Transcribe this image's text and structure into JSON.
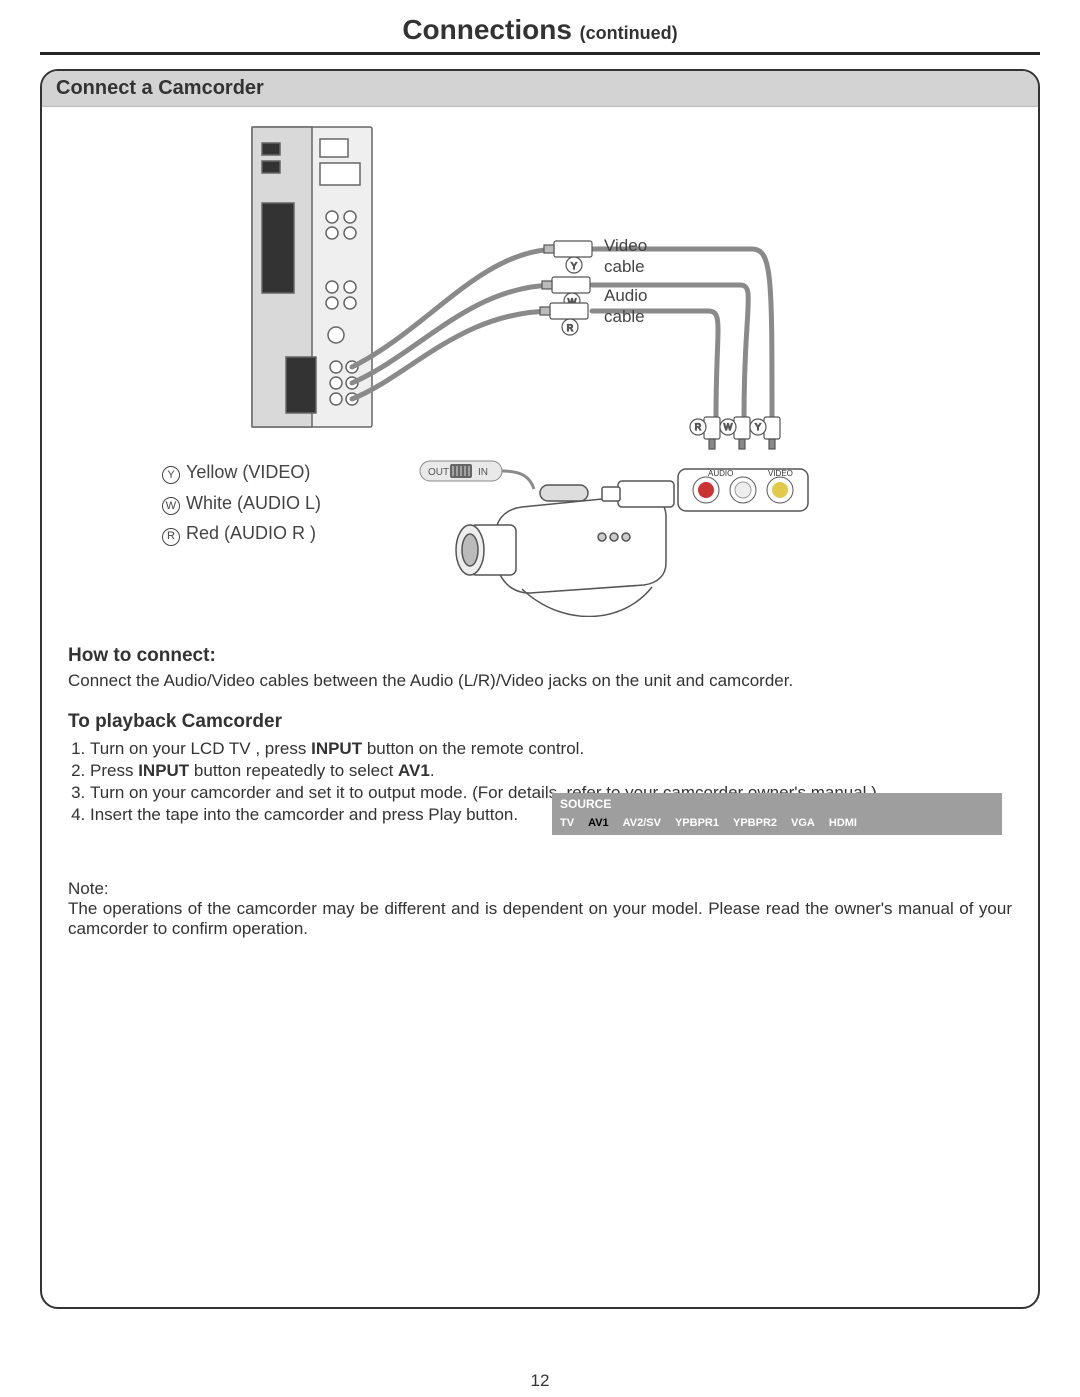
{
  "title": "Connections",
  "title_sub": "(continued)",
  "section_heading": "Connect a Camcorder",
  "diagram": {
    "video_cable_label": "Video\ncable",
    "audio_cable_label": "Audio\ncable",
    "switch_out": "OUT",
    "switch_in": "IN",
    "rca_panel_left": "AUDIO",
    "rca_panel_right": "VIDEO",
    "plug_r": "R",
    "plug_w": "W",
    "plug_y": "Y",
    "legend": [
      {
        "badge": "Y",
        "text": "Yellow (VIDEO)"
      },
      {
        "badge": "W",
        "text": "White (AUDIO L)"
      },
      {
        "badge": "R",
        "text": "Red (AUDIO R )"
      }
    ],
    "colors": {
      "line": "#8a8a8a",
      "panel_stroke": "#666",
      "panel_fill": "#efefef",
      "switch_fill": "#e9e9e9"
    }
  },
  "how_to_connect": {
    "heading": "How to connect:",
    "body": "Connect the Audio/Video cables between the Audio (L/R)/Video jacks on the unit and camcorder."
  },
  "playback": {
    "heading": "To playback Camcorder",
    "steps_html": [
      "Turn on your LCD TV , press <b>INPUT</b> button on the remote control.",
      "Press <b>INPUT</b> button repeatedly to select <b>AV1</b>.",
      "Turn on your camcorder and set it to output mode. (For details, refer to your camcorder owner's manual.)",
      "Insert the tape into the camcorder and press Play button."
    ]
  },
  "source_menu": {
    "title": "SOURCE",
    "items": [
      "TV",
      "AV1",
      "AV2/SV",
      "YPBPR1",
      "YPBPR2",
      "VGA",
      "HDMI"
    ],
    "selected_index": 1,
    "bg": "#9e9e9e",
    "text": "#ffffff",
    "selected_text": "#000000"
  },
  "note": {
    "heading": "Note:",
    "body": "The operations of the camcorder may be different and is dependent on your model. Please read the owner's manual of your camcorder to confirm operation."
  },
  "page_number": "12"
}
